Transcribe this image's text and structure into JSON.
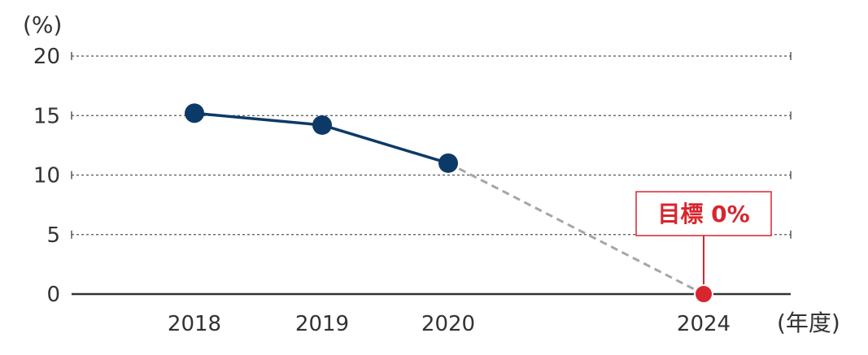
{
  "chart_data": {
    "type": "line",
    "y_unit": "(%)",
    "x_unit": "(年度)",
    "ylim": [
      0,
      20
    ],
    "yticks": [
      "0",
      "5",
      "10",
      "15",
      "20"
    ],
    "x_tick_labels": [
      "2018",
      "2019",
      "2020",
      "2024"
    ],
    "grid": true,
    "series": [
      {
        "x": [
          "2018",
          "2019",
          "2020"
        ],
        "values": [
          15.2,
          14.2,
          11.0
        ],
        "color": "#0c3a68",
        "style": "solid"
      },
      {
        "x": [
          "2020",
          "2024"
        ],
        "values": [
          11.0,
          0
        ],
        "color": "#a6a6a6",
        "style": "dashed"
      }
    ],
    "target": {
      "x": "2024",
      "value": 0,
      "label": "目標 0%",
      "color": "#d7262e"
    }
  }
}
